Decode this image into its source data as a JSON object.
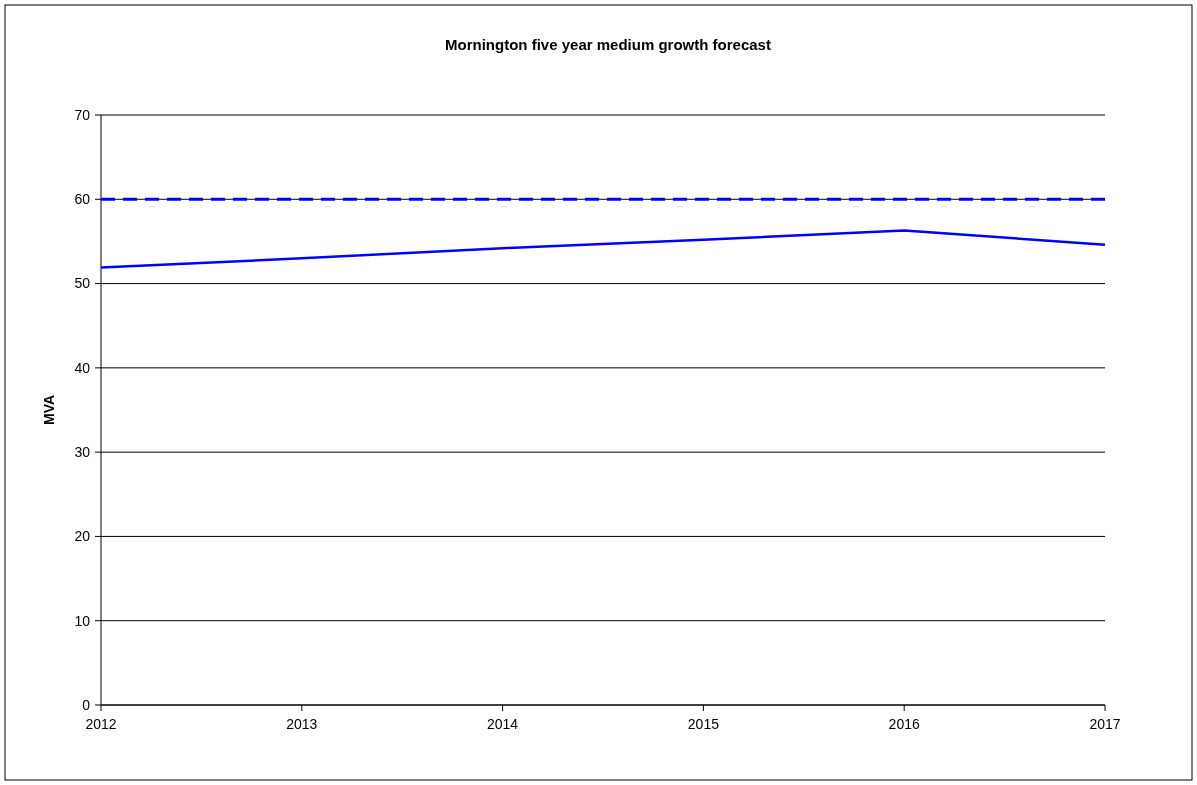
{
  "chart_data": {
    "type": "line",
    "title": "Mornington five year medium growth forecast",
    "ylabel": "MVA",
    "x": [
      2012,
      2013,
      2014,
      2015,
      2016,
      2017
    ],
    "series": [
      {
        "color": "#0000ff",
        "values": [
          51.9,
          53.0,
          54.2,
          55.2,
          56.3,
          54.6
        ]
      }
    ],
    "xlim": [
      2012,
      2017
    ],
    "xticks": [
      2012,
      2013,
      2014,
      2015,
      2016,
      2017
    ],
    "ylim": [
      0,
      70
    ],
    "yticks": [
      0,
      10,
      20,
      30,
      40,
      50,
      60,
      70
    ],
    "ref_lines": [
      {
        "axis": "y",
        "value": 60,
        "color": "#0000ff",
        "line_style": "dashed"
      }
    ],
    "grid": "y",
    "marker": "none",
    "line_style": "solid"
  }
}
